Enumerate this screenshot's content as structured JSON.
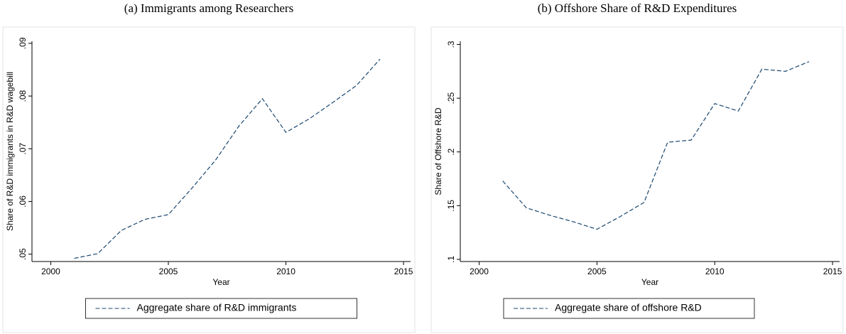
{
  "chart_data": [
    {
      "type": "line",
      "title": "(a) Immigrants among Researchers",
      "xlabel": "Year",
      "ylabel": "Share of R&D immigrants in R&D wagebill",
      "x": [
        2001,
        2002,
        2003,
        2004,
        2005,
        2006,
        2007,
        2008,
        2009,
        2010,
        2011,
        2012,
        2013,
        2014
      ],
      "series": [
        {
          "name": "Aggregate share of R&D immigrants",
          "color": "#1a476f",
          "line_style": "dashed",
          "values": [
            0.0492,
            0.0501,
            0.0545,
            0.0566,
            0.0575,
            0.0625,
            0.0678,
            0.0743,
            0.0795,
            0.0731,
            0.0757,
            0.0788,
            0.082,
            0.087
          ]
        }
      ],
      "xlim": [
        1999.2,
        2015.3
      ],
      "ylim": [
        0.0486,
        0.0904
      ],
      "xticks": [
        2000,
        2005,
        2010,
        2015
      ],
      "yticks": [
        {
          "value": 0.05,
          "label": ".05"
        },
        {
          "value": 0.06,
          "label": ".06"
        },
        {
          "value": 0.07,
          "label": ".07"
        },
        {
          "value": 0.08,
          "label": ".08"
        },
        {
          "value": 0.09,
          "label": ".09"
        }
      ]
    },
    {
      "type": "line",
      "title": "(b) Offshore Share of R&D Expenditures",
      "xlabel": "Year",
      "ylabel": "Share of Offshore R&D",
      "x": [
        2001,
        2002,
        2003,
        2004,
        2005,
        2006,
        2007,
        2008,
        2009,
        2010,
        2011,
        2012,
        2013,
        2014
      ],
      "series": [
        {
          "name": "Aggregate share of offshore R&D",
          "color": "#1a476f",
          "line_style": "dashed",
          "values": [
            0.173,
            0.148,
            0.141,
            0.135,
            0.128,
            0.14,
            0.153,
            0.209,
            0.211,
            0.245,
            0.238,
            0.277,
            0.275,
            0.284
          ]
        }
      ],
      "xlim": [
        1999.2,
        2015.3
      ],
      "ylim": [
        0.098,
        0.303
      ],
      "xticks": [
        2000,
        2005,
        2010,
        2015
      ],
      "yticks": [
        {
          "value": 0.1,
          "label": ".1"
        },
        {
          "value": 0.15,
          "label": ".15"
        },
        {
          "value": 0.2,
          "label": ".2"
        },
        {
          "value": 0.25,
          "label": ".25"
        },
        {
          "value": 0.3,
          "label": ".3"
        }
      ]
    }
  ]
}
